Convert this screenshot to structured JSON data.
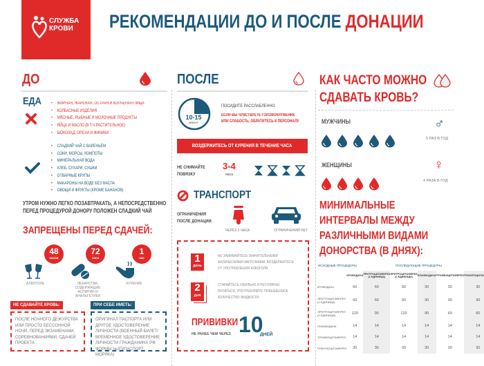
{
  "logo": {
    "text": [
      "СЛУЖБА",
      "КРОВИ"
    ]
  },
  "title": {
    "main": "РЕКОМЕНДАЦИИ ДО И ПОСЛЕ ",
    "accent": "ДОНАЦИИ"
  },
  "colors": {
    "red": "#e02a2a",
    "blue": "#1d5a7a"
  },
  "before": {
    "heading": "ДО",
    "food_heading": "ЕДА",
    "bad_food": [
      "ЖИРНАЯ, ЖАРЕНАЯ, ОСТРАЯ И КОПЧЕНАЯ ПИЩА",
      "КОЛБАСНЫЕ ИЗДЕЛИЯ",
      "МЯСНЫЕ, РЫБНЫЕ И МОЛОЧНЫЕ ПРОДУКТЫ",
      "ЯЙЦА И МАСЛО (В Т.Ч.РАСТИТЕЛЬНОЕ)",
      "ШОКОЛАД, ОРЕХИ И ФИНИКИ"
    ],
    "good_food": [
      "СЛАДКИЙ ЧАЙ С ВАРЕНЬЕМ",
      "СОКИ, МОРСЫ, КОМПОТЫ",
      "МИНЕРАЛЬНАЯ ВОДА",
      "ХЛЕБ, СУХАРИ, СУШКИ",
      "ОТВАРНЫЕ КРУПЫ",
      "МАКАРОНЫ НА ВОДЕ БЕЗ МАСЛА",
      "ОВОЩИ И ФРУКТЫ (КРОМЕ БАНАНОВ)"
    ],
    "morning": [
      "УТРОМ НУЖНО ЛЕГКО ПОЗАВТРАКАТЬ, А НЕПОСРЕДСТВЕННО",
      "ПЕРЕД ПРОЦЕДУРОЙ ДОНОРУ ПОЛОЖЕН СЛАДКИЙ ЧАЙ"
    ],
    "forbidden_heading": "ЗАПРЕЩЕНЫ ПЕРЕД СДАЧЕЙ:",
    "forbidden": [
      {
        "num": "48",
        "unit": "часов",
        "label": "АЛКОГОЛЬ"
      },
      {
        "num": "72",
        "unit": "часа",
        "label": "ЛЕКАРСТВА, СОДЕРЖАЩИЕ АСПИРИН И АНАЛЬГЕТИКИ"
      },
      {
        "num": "1",
        "unit": "час",
        "label": "КУРЕНИЕ"
      }
    ],
    "dont_title": "НЕ СДАВАЙТЕ КРОВЬ:",
    "dont_text": "ПОСЛЕ НОЧНОГО ДЕЖУРСТВА ИЛИ ПРОСТО БЕССОННОЙ НОЧИ, ПЕРЕД ЭКЗАМЕНАМИ, СОРЕВНОВАНИЯМИ, СДАЧЕЙ ПРОЕКТА",
    "bring_title": "ПРИ СЕБЕ ИМЕТЬ:",
    "bring_text": "ОРИГИНАЛ ПАСПОРТА ИЛИ ДРУГОЕ УДОСТОВЕРЕНИЕ ЛИЧНОСТИ (ВОЕННЫЙ БИЛЕТ/ ВРЕМЕННОЕ УДОСТОВЕРЕНИЕ ЛИЧНОСТИ ГРАЖДАНИНА РФ ФОРМЫ №2П/ПАСПОРТ МОРЯКА)"
  },
  "after": {
    "heading": "ПОСЛЕ",
    "clock_time": "10-15",
    "clock_unit": "МИНУТ",
    "rest": "ПОСИДИТЕ РАССЛАБЛЕННО",
    "dizzy": [
      "ЕСЛИ ВЫ ЧУВСТВУЕТЕ ГОЛОВОКРУЖЕНИЕ",
      "ИЛИ СЛАБОСТЬ, ОБРАТИТЕСЬ К ПЕРСОНАЛУ"
    ],
    "smoking_bar": "ВОЗДЕРЖИТЕСЬ ОТ КУРЕНИЯ В ТЕЧЕНИЕ ЧАСА",
    "bandage": [
      "НЕ СНИМАЙТЕ",
      "ПОВЯЗКУ"
    ],
    "bandage_time": "3-4",
    "bandage_unit": "часа",
    "transport_heading": "ТРАНСПОРТ",
    "transport_label": [
      "ОГРАНИЧЕНИЯ",
      "ПОСЛЕ ДОНАЦИИ:"
    ],
    "moto": "ЧЕРЕЗ 2 ЧАСА",
    "car": "ОГРАНИЧЕНИЙ НЕТ",
    "day1": {
      "num": "1",
      "unit": "ДЕНЬ",
      "text": "НЕ ЗАНИМАЙТЕСЬ ЗНАЧИТЕЛЬНЫМИ ФИЗИЧЕСКИМИ НАГРУЗКАМИ, ВОЗДЕРЖИТЕСЬ ОТ УПОТРЕБЛЕНИЯ АЛКОГОЛЯ"
    },
    "day2": {
      "num": "2",
      "unit": "ДНЯ",
      "text": "СТАРАЙТЕСЬ ОБИЛЬНО И РЕГУЛЯРНО ПИТАТЬСЯ, УПОТРЕБЛЯЙТЕ ПОВЫШЕННОЕ КОЛИЧЕСТВО ЖИДКОСТИ"
    },
    "vacc_title": "ПРИВИВКИ",
    "vacc_sub": "НЕ РАНЕЕ ЧЕМ ЧЕРЕЗ",
    "vacc_num": "10",
    "vacc_unit": "ДНЕЙ"
  },
  "frequency": {
    "heading": [
      "КАК ЧАСТО МОЖНО",
      "СДАВАТЬ КРОВЬ?"
    ],
    "men": "МУЖЧИНЫ",
    "men_count": 5,
    "men_text": "5 РАЗ В ГОД",
    "women": "ЖЕНЩИНЫ",
    "women_count": 4,
    "women_text": "4 РАЗА В ГОД"
  },
  "intervals": {
    "heading": [
      "МИНИМАЛЬНЫЕ",
      "ИНТЕРВАЛЫ МЕЖДУ",
      "РАЗЛИЧНЫМИ ВИДАМИ",
      "ДОНОРСТВА (В ДНЯХ):"
    ],
    "initial": "ИСХОДНЫЕ ПРОЦЕДУРЫ",
    "following": "ПОСЛЕДУЮЩИЕ ПРОЦЕДУРЫ",
    "columns": [
      "КРОВОДАЧА",
      "ЭРИТРОЦИТАФЕРЕЗ (1 ЕДИНИЦА)",
      "ЭРИТРОЦИТАФЕРЕЗ (2 ЕДИНИЦЫ)",
      "ПЛАЗМОДАЧА",
      "ТРОМБОЦИТАФЕРЕЗ",
      "ГРАНУЛОЦИТАФЕРЕЗ"
    ],
    "rows": [
      {
        "name": "КРОВОДАЧА",
        "values": [
          "60",
          "60",
          "90",
          "30",
          "30",
          "30"
        ]
      },
      {
        "name": "ЭРИТРОЦИТАФЕРЕЗ (1 ЕДИНИЦА)",
        "values": [
          "60",
          "60",
          "90",
          "30",
          "30",
          "30"
        ]
      },
      {
        "name": "ЭРИТРОЦИТАФЕРЕЗ (2 ЕДИНИЦЫ)",
        "values": [
          "120",
          "90",
          "120",
          "90",
          "60",
          "60"
        ]
      },
      {
        "name": "ПЛАЗМОДАЧА",
        "values": [
          "14",
          "14",
          "14",
          "14",
          "14",
          "14"
        ]
      },
      {
        "name": "ТРОМБОЦИТАФЕРЕЗ",
        "values": [
          "14",
          "14",
          "14",
          "14",
          "14",
          "14"
        ]
      },
      {
        "name": "ГРАНУЛОЦИТАФЕРЕЗ",
        "values": [
          "30",
          "30",
          "30",
          "30",
          "30",
          "30"
        ]
      }
    ]
  }
}
